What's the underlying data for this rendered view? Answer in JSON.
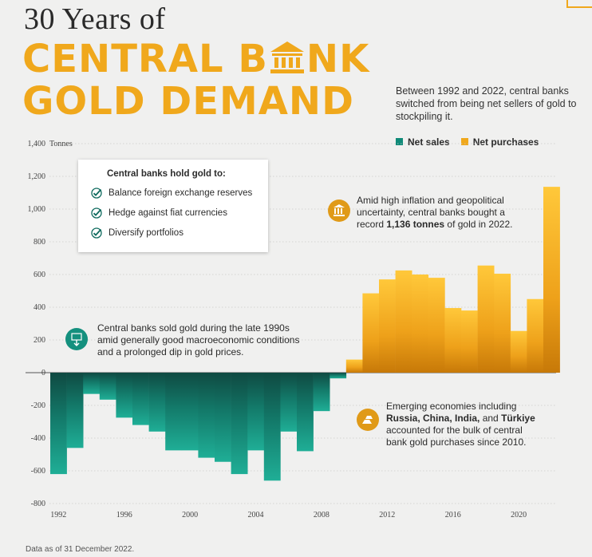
{
  "header": {
    "small_title": "30 Years of",
    "big_title_1a": "CENTRAL B",
    "big_title_1b": "NK",
    "big_title_2": "GOLD DEMAND",
    "subtitle": "Between 1992 and 2022, central banks switched from being net sellers of gold to stockpiling it."
  },
  "legend": {
    "net_sales": "Net sales",
    "net_purchases": "Net purchases"
  },
  "colors": {
    "gold": "#f0a81c",
    "gold_dark": "#c77908",
    "teal": "#1aa18c",
    "teal_dark": "#0f4a42",
    "text": "#2b2b2b"
  },
  "infobox": {
    "heading": "Central banks hold gold to:",
    "items": [
      "Balance foreign exchange reserves",
      "Hedge against fiat currencies",
      "Diversify portfolios"
    ]
  },
  "annotations": {
    "record_line1": "Amid high inflation and geopolitical",
    "record_line2": "uncertainty, central banks bought a",
    "record_line3a": "record ",
    "record_bold": "1,136 tonnes",
    "record_line3b": " of gold in 2022.",
    "sold_line1": "Central banks sold gold during the late 1990s",
    "sold_line2": "amid generally good macroeconomic conditions",
    "sold_line3": "and a prolonged dip in gold prices.",
    "emerging_line1": "Emerging economies including",
    "emerging_bold1": "Russia, China, India,",
    "emerging_and": " and ",
    "emerging_bold2": "Türkiye",
    "emerging_line3": "accounted for the bulk of central",
    "emerging_line4": "bank gold purchases since 2010."
  },
  "footnote": "Data as of 31 December 2022.",
  "chart_data": {
    "type": "bar",
    "title": "30 Years of Central Bank Gold Demand",
    "ylabel": "Tonnes",
    "ylim": [
      -800,
      1400
    ],
    "y_ticks": [
      1400,
      1200,
      1000,
      800,
      600,
      400,
      200,
      0,
      -200,
      -400,
      -600,
      -800
    ],
    "y_tick_labels": [
      "1,400",
      "1,200",
      "1,000",
      "800",
      "600",
      "400",
      "200",
      "0",
      "-200",
      "-400",
      "-600",
      "-800"
    ],
    "x_tick_labels": [
      "1992",
      "1996",
      "2000",
      "2004",
      "2008",
      "2012",
      "2016",
      "2020"
    ],
    "categories": [
      1992,
      1993,
      1994,
      1995,
      1996,
      1997,
      1998,
      1999,
      2000,
      2001,
      2002,
      2003,
      2004,
      2005,
      2006,
      2007,
      2008,
      2009,
      2010,
      2011,
      2012,
      2013,
      2014,
      2015,
      2016,
      2017,
      2018,
      2019,
      2020,
      2021,
      2022
    ],
    "values": [
      -620,
      -460,
      -130,
      -165,
      -275,
      -320,
      -360,
      -475,
      -475,
      -520,
      -545,
      -620,
      -475,
      -660,
      -360,
      -480,
      -235,
      -35,
      80,
      485,
      570,
      625,
      600,
      580,
      395,
      380,
      655,
      605,
      255,
      450,
      1136
    ],
    "legend": [
      "Net sales",
      "Net purchases"
    ]
  }
}
